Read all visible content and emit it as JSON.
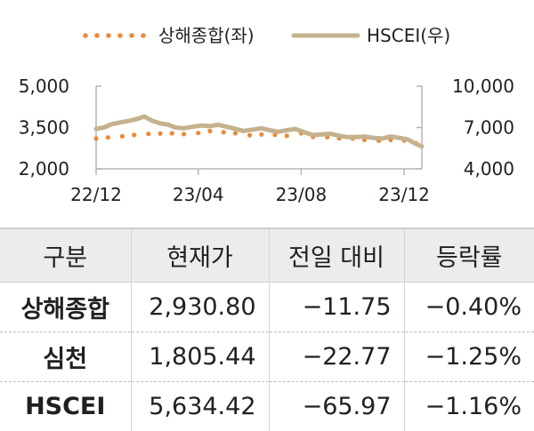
{
  "chart_data": {
    "type": "line",
    "x_ticks": [
      "22/12",
      "23/04",
      "23/08",
      "23/12"
    ],
    "y_left": {
      "ticks": [
        "5,000",
        "3,500",
        "2,000"
      ],
      "ylim": [
        2000,
        5000
      ]
    },
    "y_right": {
      "ticks": [
        "10,000",
        "7,000",
        "4,000"
      ],
      "ylim": [
        4000,
        10000
      ]
    },
    "series": [
      {
        "name": "상해종합(좌)",
        "axis": "left",
        "style": "dotted",
        "color": "#ea8a3a",
        "x": [
          "2022-12-01",
          "2022-12-15",
          "2023-01-01",
          "2023-01-15",
          "2023-02-01",
          "2023-02-15",
          "2023-03-01",
          "2023-03-15",
          "2023-04-01",
          "2023-04-15",
          "2023-05-01",
          "2023-05-15",
          "2023-06-01",
          "2023-06-15",
          "2023-07-01",
          "2023-07-15",
          "2023-08-01",
          "2023-08-15",
          "2023-09-01",
          "2023-09-15",
          "2023-10-01",
          "2023-10-15",
          "2023-11-01",
          "2023-11-15",
          "2023-12-01",
          "2023-12-15"
        ],
        "values": [
          3100,
          3140,
          3180,
          3230,
          3270,
          3280,
          3290,
          3260,
          3300,
          3370,
          3330,
          3290,
          3220,
          3250,
          3240,
          3200,
          3290,
          3160,
          3150,
          3110,
          3100,
          3050,
          3020,
          3050,
          3030,
          2931
        ]
      },
      {
        "name": "HSCEI(우)",
        "axis": "right",
        "style": "solid",
        "color": "#c4b28e",
        "x": [
          "2022-12-01",
          "2022-12-10",
          "2022-12-20",
          "2023-01-01",
          "2023-01-10",
          "2023-01-20",
          "2023-01-27",
          "2023-02-05",
          "2023-02-15",
          "2023-02-25",
          "2023-03-05",
          "2023-03-15",
          "2023-03-25",
          "2023-04-05",
          "2023-04-15",
          "2023-04-25",
          "2023-05-05",
          "2023-05-15",
          "2023-05-25",
          "2023-06-05",
          "2023-06-15",
          "2023-06-25",
          "2023-07-05",
          "2023-07-15",
          "2023-07-25",
          "2023-08-05",
          "2023-08-15",
          "2023-08-25",
          "2023-09-05",
          "2023-09-15",
          "2023-09-25",
          "2023-10-05",
          "2023-10-15",
          "2023-10-25",
          "2023-11-05",
          "2023-11-15",
          "2023-11-25",
          "2023-12-05",
          "2023-12-15",
          "2023-12-22"
        ],
        "values": [
          6900,
          7000,
          7250,
          7400,
          7500,
          7650,
          7800,
          7500,
          7300,
          7200,
          7000,
          6950,
          7050,
          7150,
          7100,
          7200,
          7050,
          6900,
          6750,
          6850,
          6950,
          6800,
          6700,
          6800,
          6900,
          6650,
          6450,
          6500,
          6550,
          6400,
          6300,
          6300,
          6350,
          6250,
          6200,
          6350,
          6250,
          6150,
          5800,
          5634
        ]
      }
    ]
  },
  "table": {
    "headers": [
      "구분",
      "현재가",
      "전일 대비",
      "등락률"
    ],
    "rows": [
      {
        "name": "상해종합",
        "price": "2,930.80",
        "change": "−11.75",
        "rate": "−0.40%"
      },
      {
        "name": "심천",
        "price": "1,805.44",
        "change": "−22.77",
        "rate": "−1.25%"
      },
      {
        "name": "HSCEI",
        "price": "5,634.42",
        "change": "−65.97",
        "rate": "−1.16%"
      }
    ]
  }
}
